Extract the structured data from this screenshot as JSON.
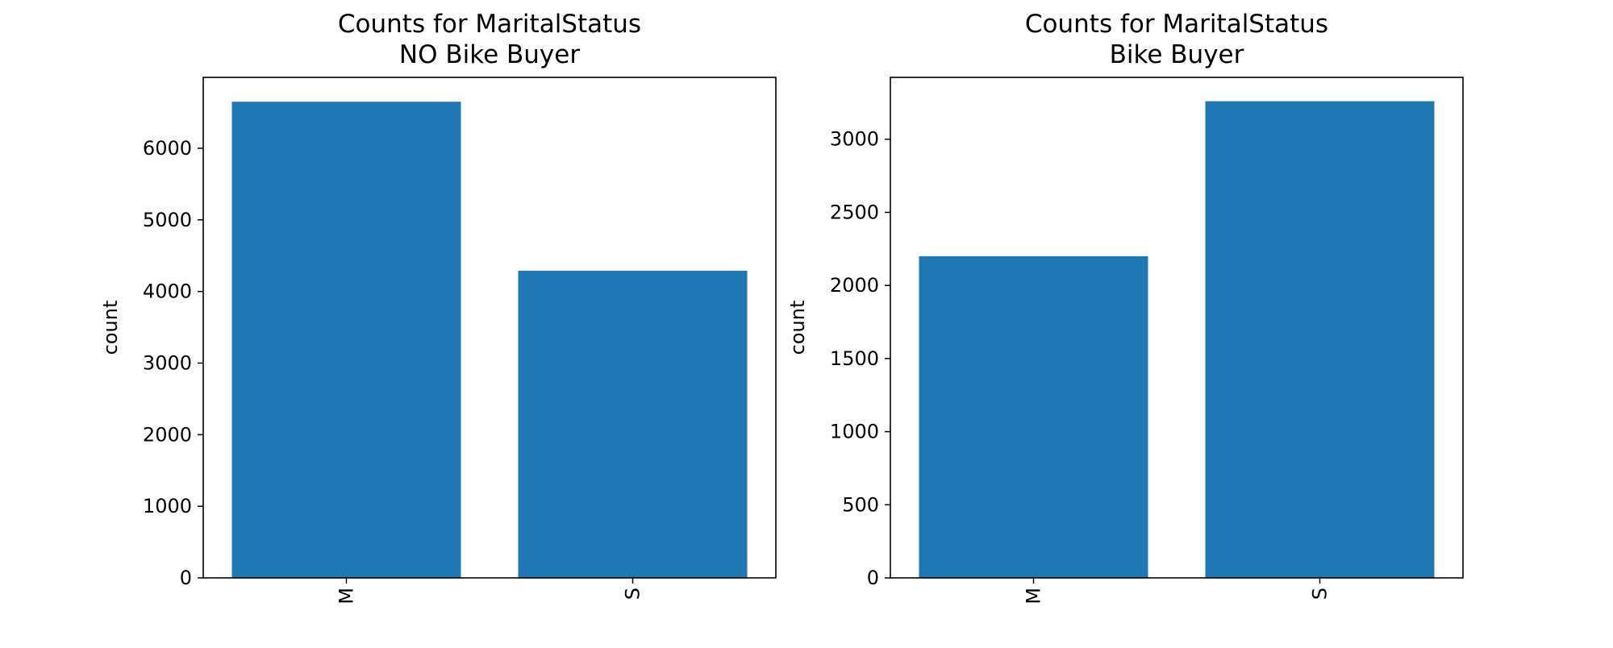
{
  "chart_data": [
    {
      "type": "bar",
      "title": "Counts for MaritalStatus",
      "subtitle": "NO Bike Buyer",
      "xlabel": "",
      "ylabel": "count",
      "categories": [
        "M",
        "S"
      ],
      "values": [
        6650,
        4290
      ],
      "ylim": [
        0,
        6990
      ],
      "yticks": [
        0,
        1000,
        2000,
        3000,
        4000,
        5000,
        6000
      ],
      "ytick_labels": [
        "0",
        "1000",
        "2000",
        "3000",
        "4000",
        "5000",
        "6000"
      ],
      "xtick_rotation": "vertical",
      "grid": false,
      "bar_color": "#1f77b4"
    },
    {
      "type": "bar",
      "title": "Counts for MaritalStatus",
      "subtitle": "Bike Buyer",
      "xlabel": "",
      "ylabel": "count",
      "categories": [
        "M",
        "S"
      ],
      "values": [
        2200,
        3260
      ],
      "ylim": [
        0,
        3423
      ],
      "yticks": [
        0,
        500,
        1000,
        1500,
        2000,
        2500,
        3000
      ],
      "ytick_labels": [
        "0",
        "500",
        "1000",
        "1500",
        "2000",
        "2500",
        "3000"
      ],
      "xtick_rotation": "vertical",
      "grid": false,
      "bar_color": "#1f77b4"
    }
  ]
}
